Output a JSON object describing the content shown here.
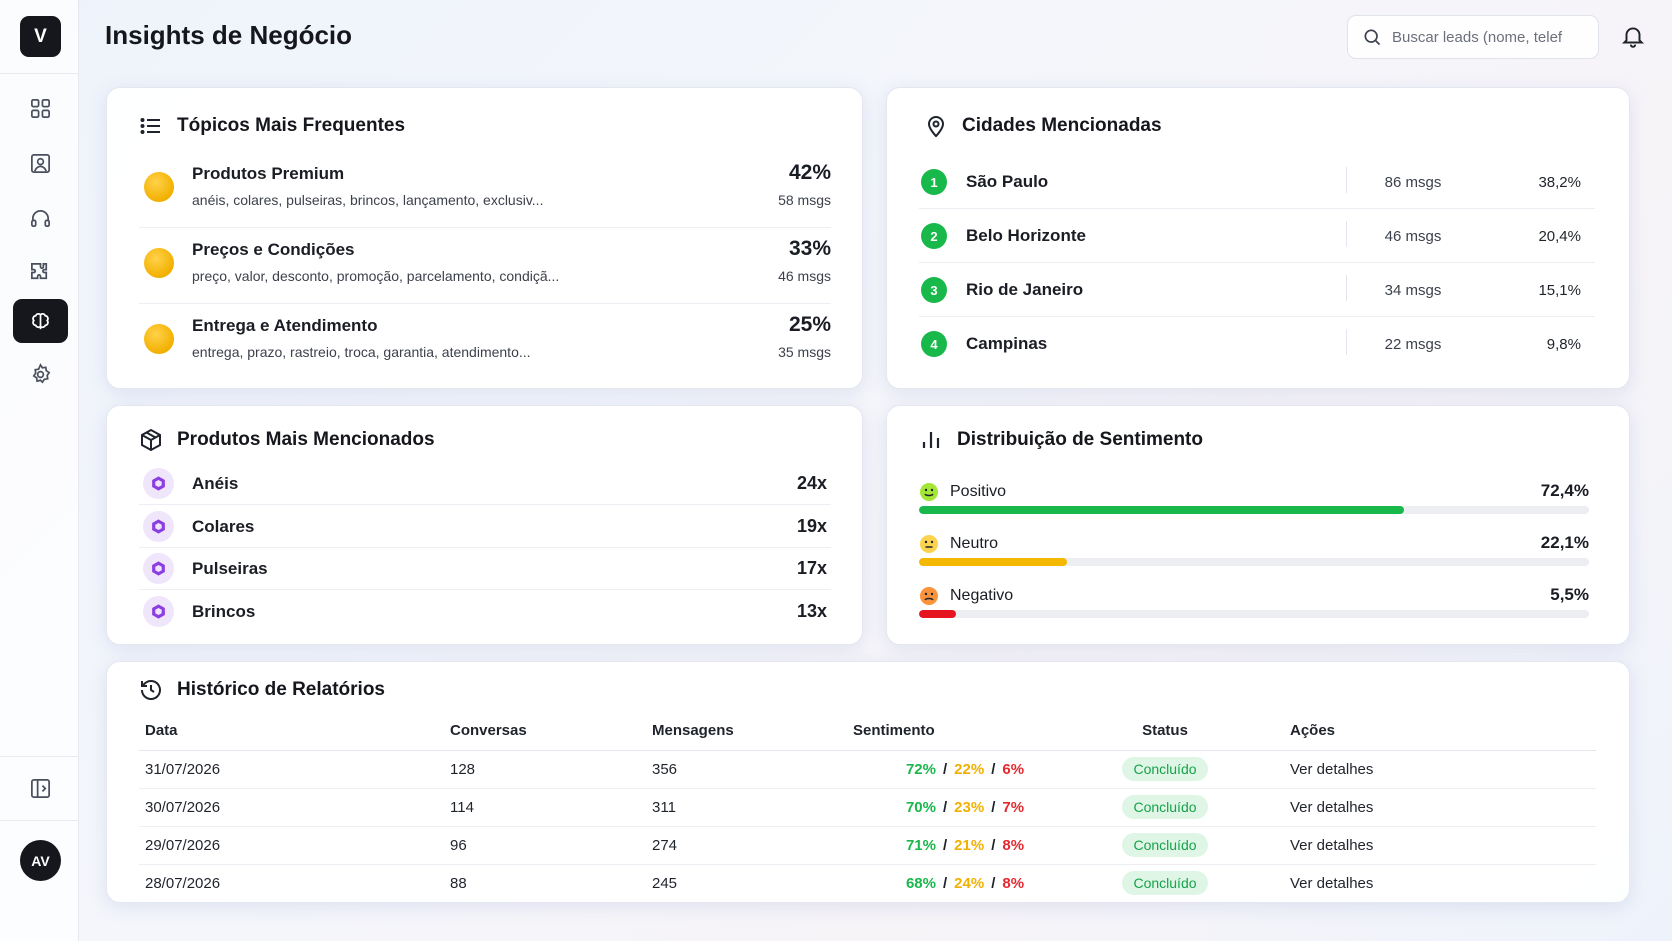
{
  "app": {
    "logo_letter": "V",
    "avatar_initials": "AV"
  },
  "header": {
    "title": "Insights de Negócio",
    "search_placeholder": "Buscar leads (nome, telef"
  },
  "topics": {
    "title": "Tópicos Mais Frequentes",
    "items": [
      {
        "name": "Produtos Premium",
        "keywords": "anéis, colares, pulseiras, brincos, lançamento, exclusiv...",
        "pct": "42%",
        "msgs": "58 msgs"
      },
      {
        "name": "Preços e Condições",
        "keywords": "preço, valor, desconto, promoção, parcelamento, condiçã...",
        "pct": "33%",
        "msgs": "46 msgs"
      },
      {
        "name": "Entrega e Atendimento",
        "keywords": "entrega, prazo, rastreio, troca, garantia, atendimento...",
        "pct": "25%",
        "msgs": "35 msgs"
      }
    ]
  },
  "cities": {
    "title": "Cidades Mencionadas",
    "items": [
      {
        "rank": "1",
        "name": "São Paulo",
        "msgs": "86 msgs",
        "pct": "38,2%"
      },
      {
        "rank": "2",
        "name": "Belo Horizonte",
        "msgs": "46 msgs",
        "pct": "20,4%"
      },
      {
        "rank": "3",
        "name": "Rio de Janeiro",
        "msgs": "34 msgs",
        "pct": "15,1%"
      },
      {
        "rank": "4",
        "name": "Campinas",
        "msgs": "22 msgs",
        "pct": "9,8%"
      }
    ]
  },
  "products": {
    "title": "Produtos Mais Mencionados",
    "items": [
      {
        "name": "Anéis",
        "count": "24x"
      },
      {
        "name": "Colares",
        "count": "19x"
      },
      {
        "name": "Pulseiras",
        "count": "17x"
      },
      {
        "name": "Brincos",
        "count": "13x"
      }
    ]
  },
  "sentiment": {
    "title": "Distribuição de Sentimento",
    "items": [
      {
        "name": "Positivo",
        "pct": "72,4%",
        "value": 72.4,
        "color": "#18b84a",
        "face": "smile"
      },
      {
        "name": "Neutro",
        "pct": "22,1%",
        "value": 22.1,
        "color": "#f5b800",
        "face": "neutral"
      },
      {
        "name": "Negativo",
        "pct": "5,5%",
        "value": 5.5,
        "color": "#e5161f",
        "face": "sad"
      }
    ]
  },
  "history": {
    "title": "Histórico de Relatórios",
    "columns": [
      "Data",
      "Conversas",
      "Mensagens",
      "Sentimento",
      "Status",
      "Ações"
    ],
    "rows": [
      {
        "date": "31/07/2026",
        "conversas": "128",
        "mensagens": "356",
        "pos": "72%",
        "neu": "22%",
        "neg": "6%",
        "status": "Concluído",
        "action": "Ver detalhes"
      },
      {
        "date": "30/07/2026",
        "conversas": "114",
        "mensagens": "311",
        "pos": "70%",
        "neu": "23%",
        "neg": "7%",
        "status": "Concluído",
        "action": "Ver detalhes"
      },
      {
        "date": "29/07/2026",
        "conversas": "96",
        "mensagens": "274",
        "pos": "71%",
        "neu": "21%",
        "neg": "8%",
        "status": "Concluído",
        "action": "Ver detalhes"
      },
      {
        "date": "28/07/2026",
        "conversas": "88",
        "mensagens": "245",
        "pos": "68%",
        "neu": "24%",
        "neg": "8%",
        "status": "Concluído",
        "action": "Ver detalhes"
      }
    ]
  },
  "colors": {
    "accent_dark": "#15171c",
    "green": "#18b84a",
    "yellow": "#f5b800",
    "red": "#e5161f",
    "purple": "#8b3fe0"
  }
}
